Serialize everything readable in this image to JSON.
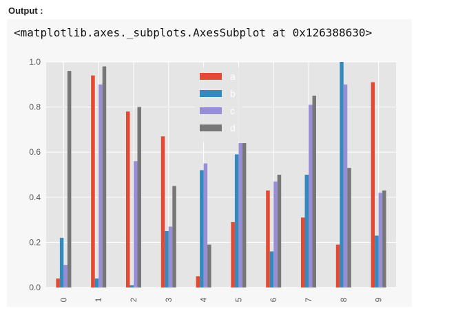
{
  "header": {
    "output_label": "Output :",
    "output_text": "<matplotlib.axes._subplots.AxesSubplot at 0x126388630>"
  },
  "colors": {
    "a": "#E24A33",
    "b": "#348ABD",
    "c": "#988ED5",
    "d": "#777777",
    "plot_bg": "#E5E5E5",
    "grid": "#ffffff"
  },
  "chart_data": {
    "type": "bar",
    "title": "",
    "xlabel": "",
    "ylabel": "",
    "categories": [
      "0",
      "1",
      "2",
      "3",
      "4",
      "5",
      "6",
      "7",
      "8",
      "9"
    ],
    "ylim": [
      0,
      1.0
    ],
    "yticks": [
      "0.0",
      "0.2",
      "0.4",
      "0.6",
      "0.8",
      "1.0"
    ],
    "grid": true,
    "legend_position": "top-center",
    "series": [
      {
        "name": "a",
        "values": [
          0.04,
          0.94,
          0.78,
          0.67,
          0.05,
          0.29,
          0.43,
          0.31,
          0.19,
          0.91
        ]
      },
      {
        "name": "b",
        "values": [
          0.22,
          0.04,
          0.01,
          0.25,
          0.52,
          0.59,
          0.16,
          0.5,
          1.0,
          0.23
        ]
      },
      {
        "name": "c",
        "values": [
          0.1,
          0.9,
          0.56,
          0.27,
          0.55,
          0.64,
          0.47,
          0.81,
          0.9,
          0.42
        ]
      },
      {
        "name": "d",
        "values": [
          0.96,
          0.98,
          0.8,
          0.45,
          0.19,
          0.64,
          0.5,
          0.85,
          0.53,
          0.43
        ]
      }
    ]
  }
}
